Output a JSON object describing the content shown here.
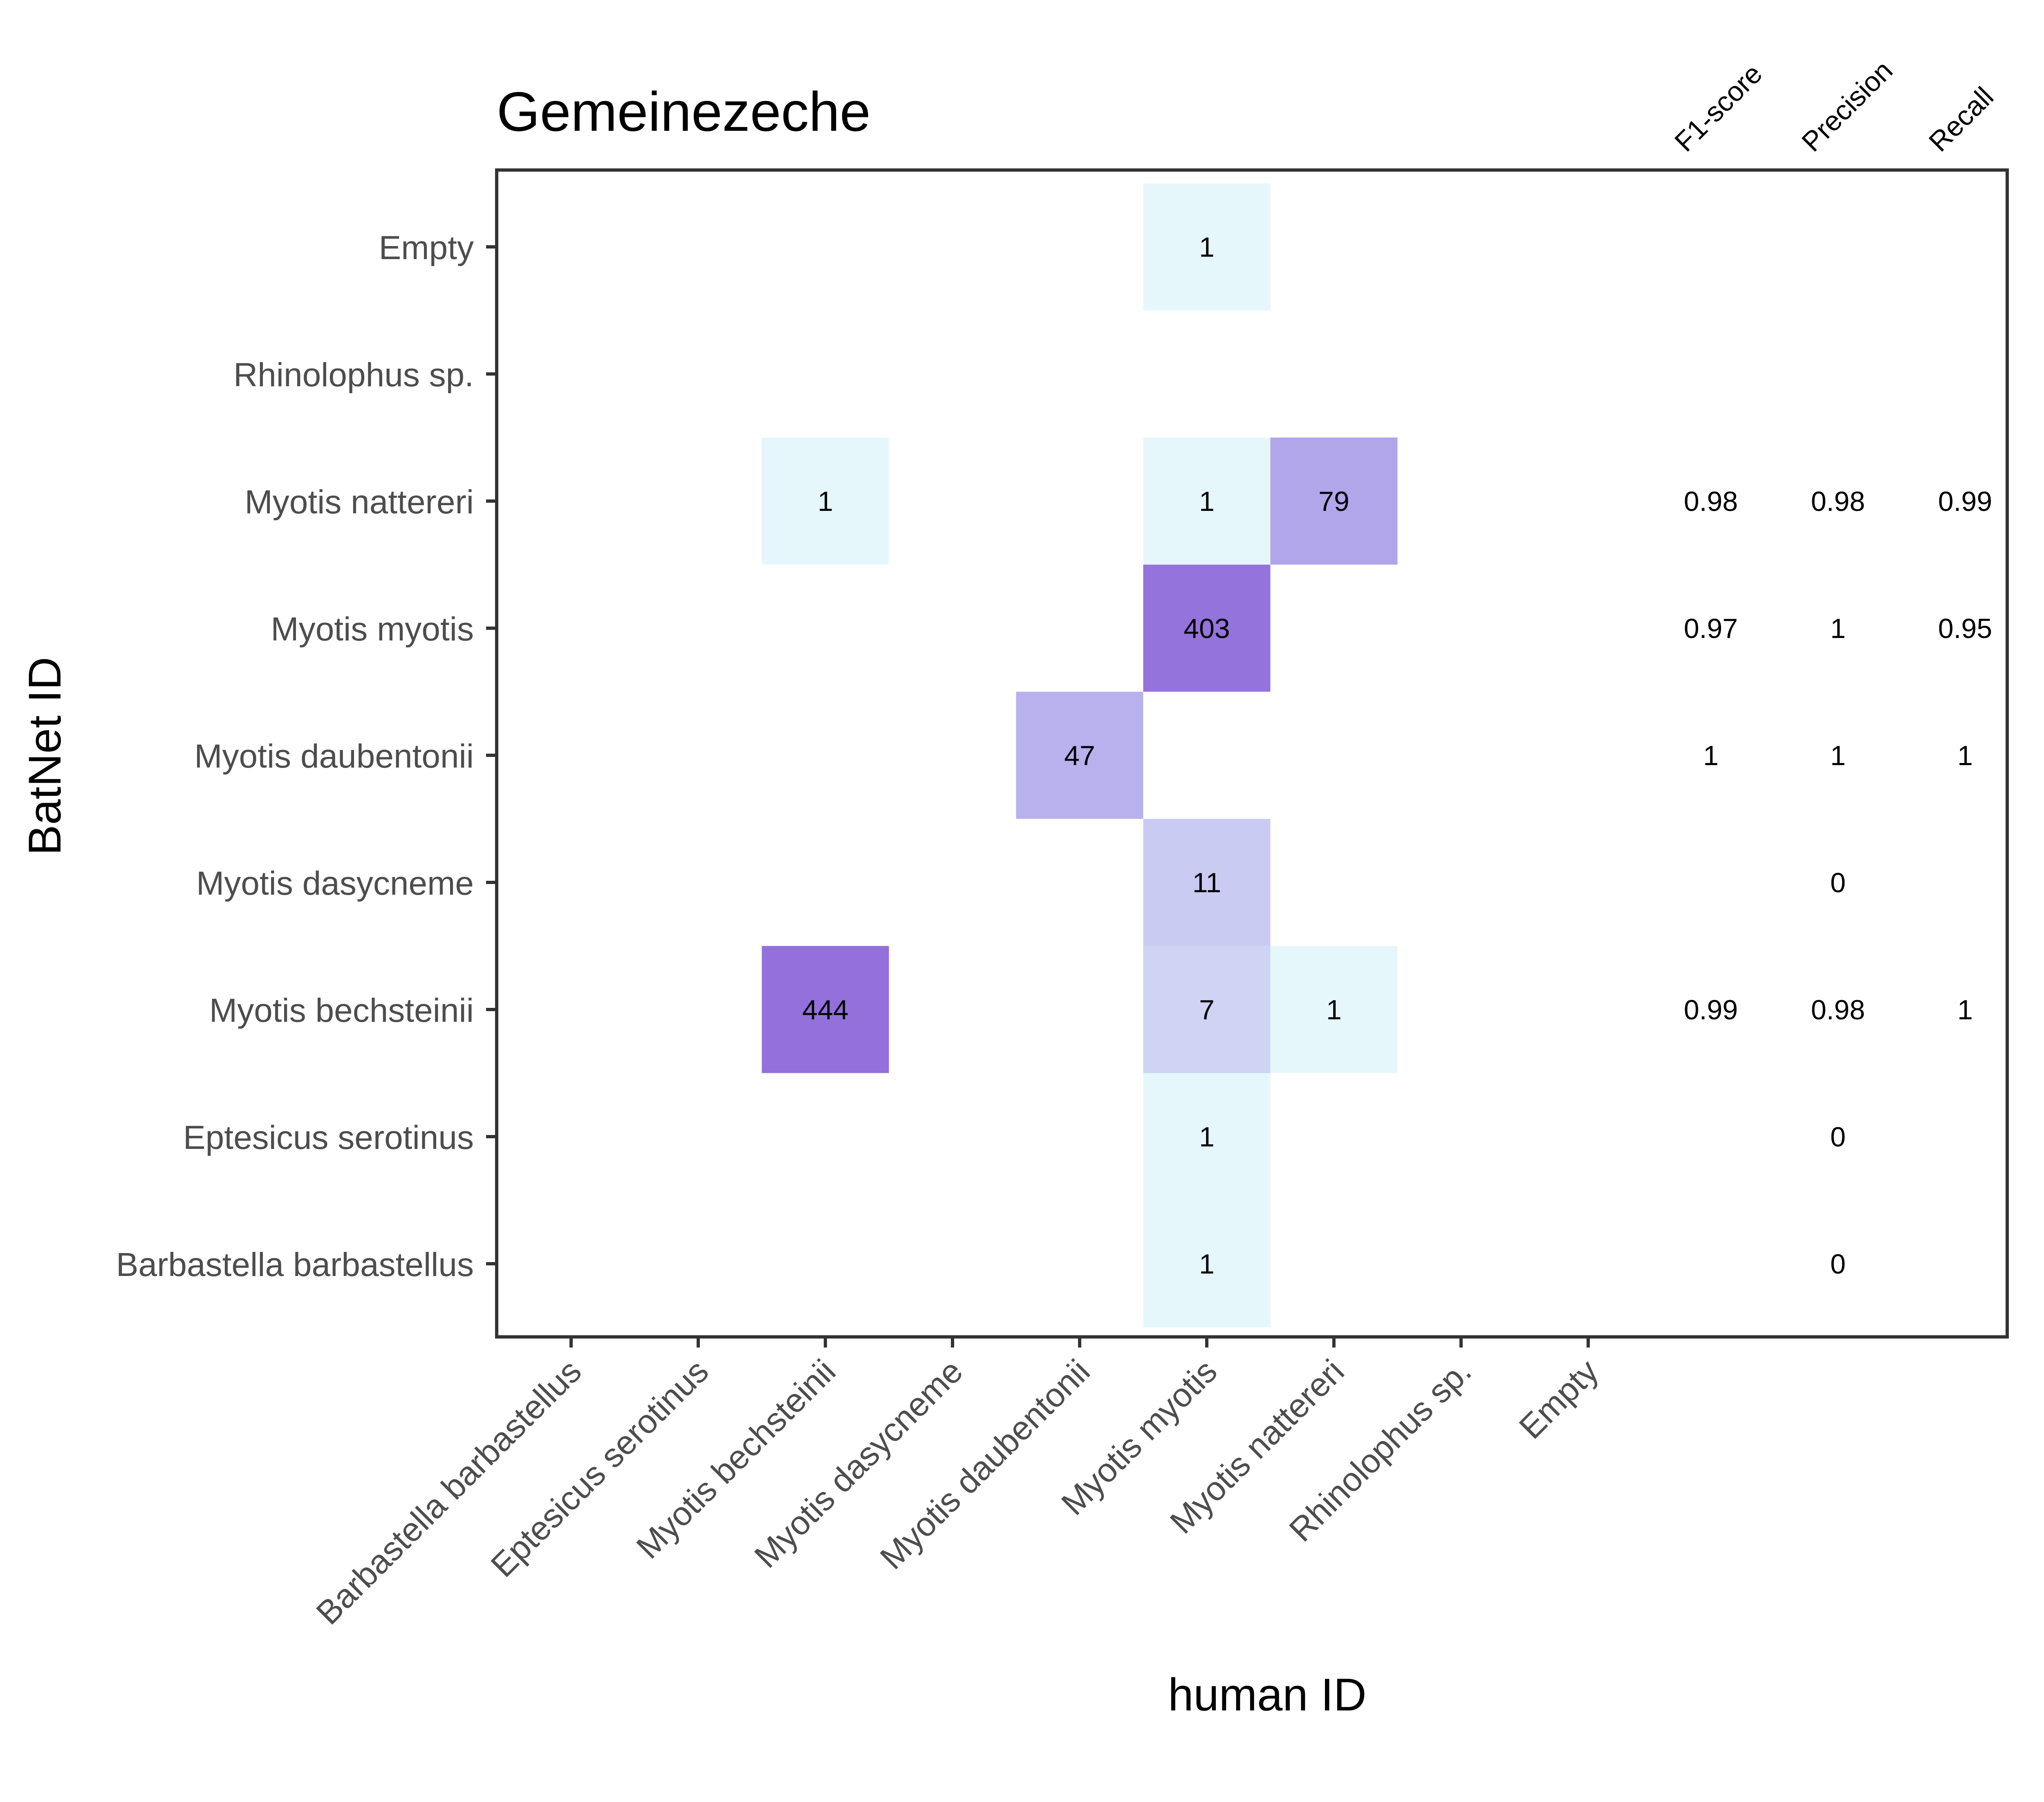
{
  "chart_data": {
    "type": "heatmap",
    "title": "Gemeinezeche",
    "xlabel": "human ID",
    "ylabel": "BatNet ID",
    "categories_x": [
      "Barbastella barbastellus",
      "Eptesicus serotinus",
      "Myotis bechsteinii",
      "Myotis dasycneme",
      "Myotis daubentonii",
      "Myotis myotis",
      "Myotis nattereri",
      "Rhinolophus sp.",
      "Empty"
    ],
    "categories_y": [
      "Empty",
      "Rhinolophus sp.",
      "Myotis nattereri",
      "Myotis myotis",
      "Myotis daubentonii",
      "Myotis dasycneme",
      "Myotis bechsteinii",
      "Eptesicus serotinus",
      "Barbastella barbastellus"
    ],
    "cells": [
      {
        "x": "Myotis myotis",
        "y": "Empty",
        "value": 1
      },
      {
        "x": "Myotis bechsteinii",
        "y": "Myotis nattereri",
        "value": 1
      },
      {
        "x": "Myotis myotis",
        "y": "Myotis nattereri",
        "value": 1
      },
      {
        "x": "Myotis nattereri",
        "y": "Myotis nattereri",
        "value": 79
      },
      {
        "x": "Myotis myotis",
        "y": "Myotis myotis",
        "value": 403
      },
      {
        "x": "Myotis daubentonii",
        "y": "Myotis daubentonii",
        "value": 47
      },
      {
        "x": "Myotis myotis",
        "y": "Myotis dasycneme",
        "value": 11
      },
      {
        "x": "Myotis bechsteinii",
        "y": "Myotis bechsteinii",
        "value": 444
      },
      {
        "x": "Myotis myotis",
        "y": "Myotis bechsteinii",
        "value": 7
      },
      {
        "x": "Myotis nattereri",
        "y": "Myotis bechsteinii",
        "value": 1
      },
      {
        "x": "Myotis myotis",
        "y": "Eptesicus serotinus",
        "value": 1
      },
      {
        "x": "Myotis myotis",
        "y": "Barbastella barbastellus",
        "value": 1
      }
    ],
    "metric_columns": [
      "F1-score",
      "Precision",
      "Recall"
    ],
    "metrics": [
      {
        "y": "Myotis nattereri",
        "values": [
          "0.98",
          "0.98",
          "0.99"
        ]
      },
      {
        "y": "Myotis myotis",
        "values": [
          "0.97",
          "1",
          "0.95"
        ]
      },
      {
        "y": "Myotis daubentonii",
        "values": [
          "1",
          "1",
          "1"
        ]
      },
      {
        "y": "Myotis dasycneme",
        "values": [
          "",
          "0",
          ""
        ]
      },
      {
        "y": "Myotis bechsteinii",
        "values": [
          "0.99",
          "0.98",
          "1"
        ]
      },
      {
        "y": "Eptesicus serotinus",
        "values": [
          "",
          "0",
          ""
        ]
      },
      {
        "y": "Barbastella barbastellus",
        "values": [
          "",
          "0",
          ""
        ]
      }
    ],
    "color_scale": {
      "low": "#e6f7fc",
      "mid": "#b3a9eb",
      "high": "#9370db"
    },
    "grid": false,
    "legend": "none"
  }
}
